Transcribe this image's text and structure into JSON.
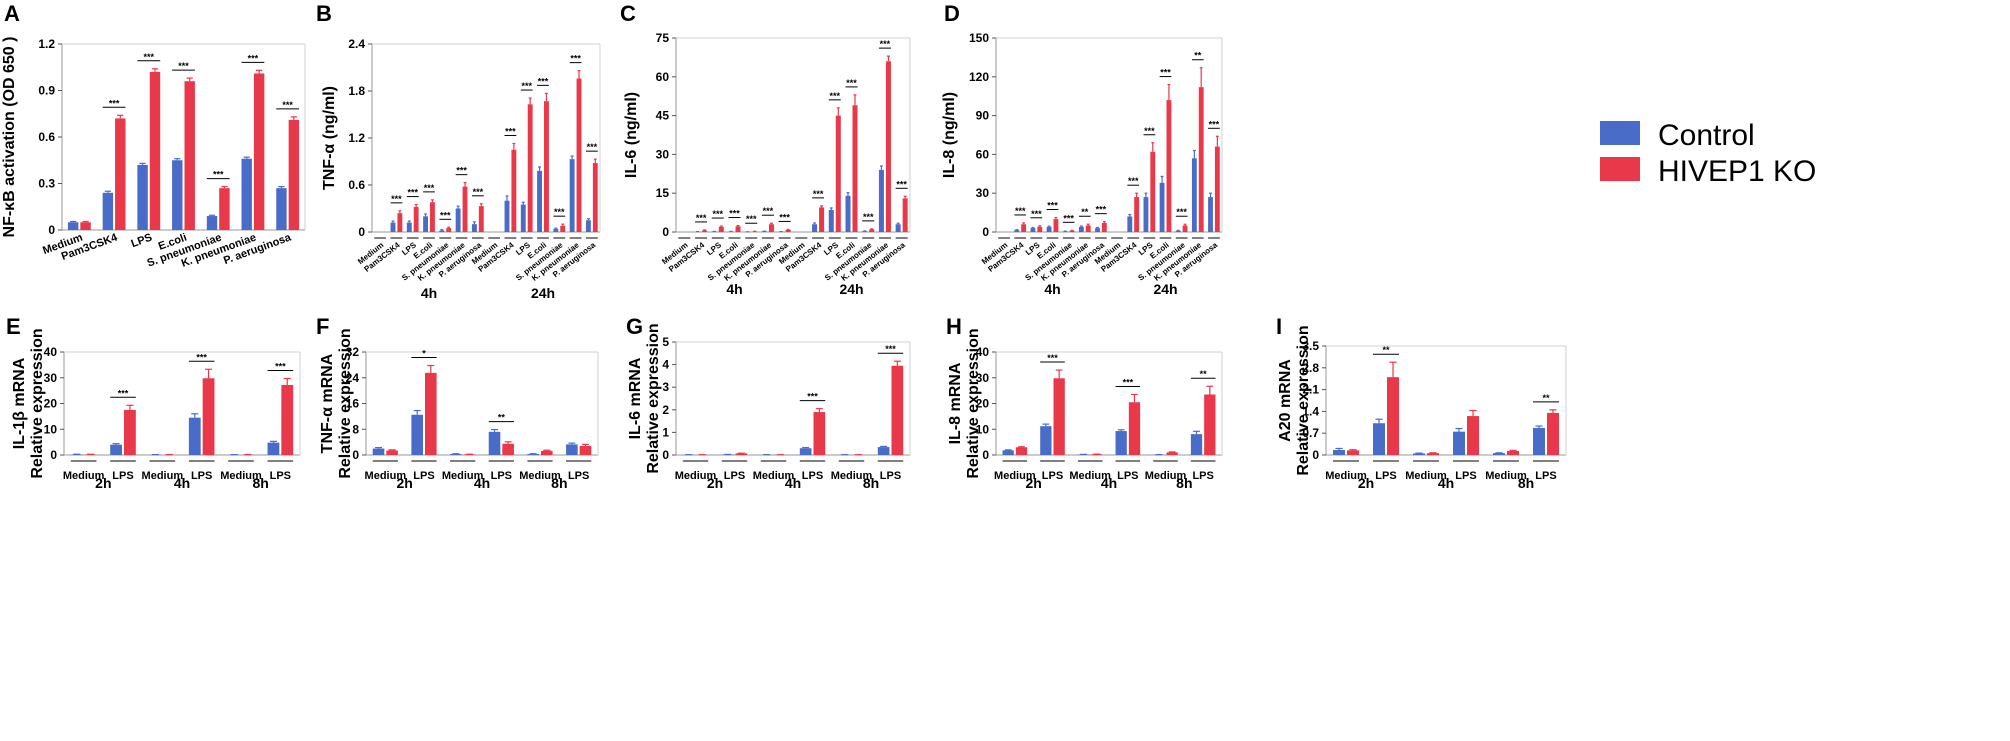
{
  "legend": [
    {
      "name": "Control",
      "color": "#4a6cc9"
    },
    {
      "name": "HIVEP1 KO",
      "color": "#e8384a"
    }
  ],
  "chart_data": [
    {
      "type": "bar",
      "panel": "A",
      "ylabel": "NF-κB activation (OD 650 )",
      "ylim": [
        0,
        1.2
      ],
      "yticks": [
        "0",
        "0.3",
        "0.6",
        "0.9",
        "1.2"
      ],
      "categories": [
        "Medium",
        "Pam3CSK4",
        "LPS",
        "E.coli",
        "S. pneumoniae",
        "K. pneumoniae",
        "P. aeruginosa"
      ],
      "series": [
        {
          "name": "Control",
          "values": [
            0.05,
            0.24,
            0.42,
            0.45,
            0.09,
            0.46,
            0.27
          ],
          "errors": [
            0.005,
            0.01,
            0.01,
            0.01,
            0.005,
            0.01,
            0.01
          ]
        },
        {
          "name": "HIVEP1 KO",
          "values": [
            0.05,
            0.72,
            1.02,
            0.96,
            0.27,
            1.01,
            0.71
          ],
          "errors": [
            0.005,
            0.02,
            0.02,
            0.02,
            0.01,
            0.02,
            0.02
          ]
        }
      ],
      "significance": [
        "",
        "***",
        "***",
        "***",
        "***",
        "***",
        "***"
      ],
      "groups": []
    },
    {
      "type": "bar",
      "panel": "B",
      "ylabel": "TNF-α  (ng/ml)",
      "ylim": [
        0,
        2.4
      ],
      "yticks": [
        "0",
        "0.6",
        "1.2",
        "1.8",
        "2.4"
      ],
      "categories": [
        "Medium",
        "Pam3CSK4",
        "LPS",
        "E.coli",
        "S. pneumoniae",
        "K. pneumoniae",
        "P. aeruginosa",
        "Medium",
        "Pam3CSK4",
        "LPS",
        "E.coli",
        "S. pneumoniae",
        "K. pneumoniae",
        "P. aeruginosa"
      ],
      "series": [
        {
          "name": "Control",
          "values": [
            0,
            0.12,
            0.12,
            0.2,
            0.02,
            0.3,
            0.1,
            0,
            0.4,
            0.35,
            0.78,
            0.04,
            0.93,
            0.15
          ],
          "errors": [
            0,
            0.02,
            0.02,
            0.03,
            0.01,
            0.03,
            0.03,
            0,
            0.06,
            0.03,
            0.05,
            0.01,
            0.04,
            0.02
          ]
        },
        {
          "name": "HIVEP1 KO",
          "values": [
            0,
            0.24,
            0.32,
            0.38,
            0.05,
            0.58,
            0.33,
            0,
            1.05,
            1.63,
            1.67,
            0.08,
            1.96,
            0.88
          ],
          "errors": [
            0,
            0.03,
            0.03,
            0.03,
            0.01,
            0.05,
            0.03,
            0,
            0.08,
            0.08,
            0.1,
            0.02,
            0.1,
            0.05
          ]
        }
      ],
      "significance": [
        "",
        "***",
        "***",
        "***",
        "***",
        "***",
        "***",
        "",
        "***",
        "***",
        "***",
        "***",
        "***",
        "***"
      ],
      "groups": [
        "4h",
        "24h"
      ]
    },
    {
      "type": "bar",
      "panel": "C",
      "ylabel": "IL-6  (ng/ml)",
      "ylim": [
        0,
        75
      ],
      "yticks": [
        "0",
        "15",
        "30",
        "45",
        "60",
        "75"
      ],
      "categories": [
        "Medium",
        "Pam3CSK4",
        "LPS",
        "E.coli",
        "S. pneumoniae",
        "K. pneumoniae",
        "P. aeruginosa",
        "Medium",
        "Pam3CSK4",
        "LPS",
        "E.coli",
        "S. pneumoniae",
        "K. pneumoniae",
        "P. aeruginosa"
      ],
      "series": [
        {
          "name": "Control",
          "values": [
            0,
            0.1,
            0.2,
            0.2,
            0.05,
            0.3,
            0.1,
            0,
            3,
            8.5,
            14,
            0.3,
            24,
            3
          ],
          "errors": [
            0,
            0.05,
            0.05,
            0.05,
            0.02,
            0.05,
            0.05,
            0,
            0.5,
            0.8,
            1.2,
            0.1,
            1.5,
            0.4
          ]
        },
        {
          "name": "HIVEP1 KO",
          "values": [
            0,
            0.6,
            2,
            2.2,
            0.2,
            3,
            0.8,
            0,
            9.5,
            45,
            49,
            1,
            66,
            13
          ],
          "errors": [
            0,
            0.2,
            0.3,
            0.3,
            0.1,
            0.4,
            0.2,
            0,
            0.6,
            3,
            4,
            0.2,
            2,
            0.8
          ]
        }
      ],
      "significance": [
        "",
        "***",
        "***",
        "***",
        "***",
        "***",
        "***",
        "",
        "***",
        "***",
        "***",
        "***",
        "***",
        "***"
      ],
      "groups": [
        "4h",
        "24h"
      ]
    },
    {
      "type": "bar",
      "panel": "D",
      "ylabel": "IL-8  (ng/ml)",
      "ylim": [
        0,
        150
      ],
      "yticks": [
        "0",
        "30",
        "60",
        "90",
        "120",
        "150"
      ],
      "categories": [
        "Medium",
        "Pam3CSK4",
        "LPS",
        "E.coli",
        "S. pneumoniae",
        "K. pneumoniae",
        "P. aeruginosa",
        "Medium",
        "Pam3CSK4",
        "LPS",
        "E.coli",
        "S. pneumoniae",
        "K. pneumoniae",
        "P. aeruginosa"
      ],
      "series": [
        {
          "name": "Control",
          "values": [
            0,
            1.5,
            3,
            4,
            0.5,
            4,
            3,
            0,
            12,
            27,
            38,
            1,
            57,
            27
          ],
          "errors": [
            0,
            0.3,
            0.5,
            0.5,
            0.2,
            0.6,
            0.5,
            0,
            1.5,
            3,
            5,
            0.3,
            6,
            3
          ]
        },
        {
          "name": "HIVEP1 KO",
          "values": [
            0,
            6,
            4,
            10,
            1,
            5,
            7,
            0,
            27,
            62,
            102,
            5,
            112,
            66
          ],
          "errors": [
            0,
            1,
            0.8,
            1.2,
            0.3,
            1,
            1,
            0,
            3,
            7,
            12,
            1,
            15,
            8
          ]
        }
      ],
      "significance": [
        "",
        "***",
        "***",
        "***",
        "***",
        "**",
        "***",
        "",
        "***",
        "***",
        "***",
        "***",
        "**",
        "***"
      ],
      "groups": [
        "4h",
        "24h"
      ]
    },
    {
      "type": "bar",
      "panel": "E",
      "ylabel": [
        "IL-1β mRNA",
        "Relative  expression"
      ],
      "ylim": [
        0,
        40
      ],
      "yticks": [
        "0",
        "10",
        "20",
        "30",
        "40"
      ],
      "categories": [
        "Medium",
        "LPS",
        "Medium",
        "LPS",
        "Medium",
        "LPS"
      ],
      "series": [
        {
          "name": "Control",
          "values": [
            0.2,
            4,
            0.1,
            14.5,
            0.1,
            4.8
          ],
          "errors": [
            0.1,
            0.4,
            0.05,
            1.5,
            0.05,
            0.5
          ]
        },
        {
          "name": "HIVEP1 KO",
          "values": [
            0.2,
            17.5,
            0.1,
            29.8,
            0.1,
            27.2
          ],
          "errors": [
            0.1,
            1.8,
            0.05,
            3.5,
            0.05,
            2.5
          ]
        }
      ],
      "significance": [
        "",
        "***",
        "",
        "***",
        "",
        "***"
      ],
      "groups": [
        "2h",
        "4h",
        "8h"
      ]
    },
    {
      "type": "bar",
      "panel": "F",
      "ylabel": [
        "TNF-α mRNA",
        "Relative  expression"
      ],
      "ylim": [
        0,
        32
      ],
      "yticks": [
        "0",
        "8",
        "16",
        "24",
        "32"
      ],
      "categories": [
        "Medium",
        "LPS",
        "Medium",
        "LPS",
        "Medium",
        "LPS"
      ],
      "series": [
        {
          "name": "Control",
          "values": [
            2,
            12.5,
            0.3,
            7.2,
            0.3,
            3.3
          ],
          "errors": [
            0.3,
            1.3,
            0.1,
            0.7,
            0.1,
            0.4
          ]
        },
        {
          "name": "HIVEP1 KO",
          "values": [
            1.4,
            25.5,
            0.2,
            3.5,
            1.3,
            2.8
          ],
          "errors": [
            0.2,
            2.3,
            0.05,
            0.6,
            0.2,
            0.5
          ]
        }
      ],
      "significance": [
        "",
        "*",
        "",
        "**",
        "",
        ""
      ],
      "groups": [
        "2h",
        "4h",
        "8h"
      ]
    },
    {
      "type": "bar",
      "panel": "G",
      "ylabel": [
        "IL-6 mRNA",
        "Relative  expression"
      ],
      "ylim": [
        0,
        5
      ],
      "yticks": [
        "0",
        "1",
        "2",
        "3",
        "4",
        "5"
      ],
      "categories": [
        "Medium",
        "LPS",
        "Medium",
        "LPS",
        "Medium",
        "LPS"
      ],
      "series": [
        {
          "name": "Control",
          "values": [
            0.01,
            0.02,
            0.01,
            0.3,
            0.01,
            0.35
          ],
          "errors": [
            0.005,
            0.005,
            0.005,
            0.03,
            0.005,
            0.03
          ]
        },
        {
          "name": "HIVEP1 KO",
          "values": [
            0.01,
            0.07,
            0.01,
            1.9,
            0.01,
            3.95
          ],
          "errors": [
            0.005,
            0.01,
            0.005,
            0.15,
            0.005,
            0.2
          ]
        }
      ],
      "significance": [
        "",
        "",
        "",
        "***",
        "",
        "***"
      ],
      "groups": [
        "2h",
        "4h",
        "8h"
      ]
    },
    {
      "type": "bar",
      "panel": "H",
      "ylabel": [
        "IL-8 mRNA",
        "Relative  expression"
      ],
      "ylim": [
        0,
        40
      ],
      "yticks": [
        "0",
        "10",
        "20",
        "30",
        "40"
      ],
      "categories": [
        "Medium",
        "LPS",
        "Medium",
        "LPS",
        "Medium",
        "LPS"
      ],
      "series": [
        {
          "name": "Control",
          "values": [
            1.8,
            11.2,
            0.2,
            9.3,
            0.1,
            8.1
          ],
          "errors": [
            0.2,
            0.8,
            0.05,
            0.5,
            0.05,
            1.1
          ]
        },
        {
          "name": "HIVEP1 KO",
          "values": [
            3,
            29.8,
            0.3,
            20.5,
            1,
            23.5
          ],
          "errors": [
            0.2,
            3.2,
            0.05,
            3,
            0.2,
            3.2
          ]
        }
      ],
      "significance": [
        "",
        "***",
        "",
        "***",
        "",
        "**"
      ],
      "groups": [
        "2h",
        "4h",
        "8h"
      ]
    },
    {
      "type": "bar",
      "panel": "I",
      "ylabel": [
        "A20 mRNA",
        "Relative  expression"
      ],
      "ylim": [
        0,
        3.5
      ],
      "yticks": [
        "0",
        "0.7",
        "1.4",
        "2.1",
        "2.8",
        "3.5"
      ],
      "categories": [
        "Medium",
        "LPS",
        "Medium",
        "LPS",
        "Medium",
        "LPS"
      ],
      "series": [
        {
          "name": "Control",
          "values": [
            0.16,
            1.02,
            0.05,
            0.75,
            0.06,
            0.87
          ],
          "errors": [
            0.05,
            0.13,
            0.01,
            0.1,
            0.01,
            0.06
          ]
        },
        {
          "name": "HIVEP1 KO",
          "values": [
            0.15,
            2.5,
            0.06,
            1.25,
            0.13,
            1.35
          ],
          "errors": [
            0.02,
            0.48,
            0.01,
            0.18,
            0.02,
            0.1
          ]
        }
      ],
      "significance": [
        "",
        "**",
        "",
        "",
        "",
        "**"
      ],
      "groups": [
        "2h",
        "4h",
        "8h"
      ]
    }
  ]
}
